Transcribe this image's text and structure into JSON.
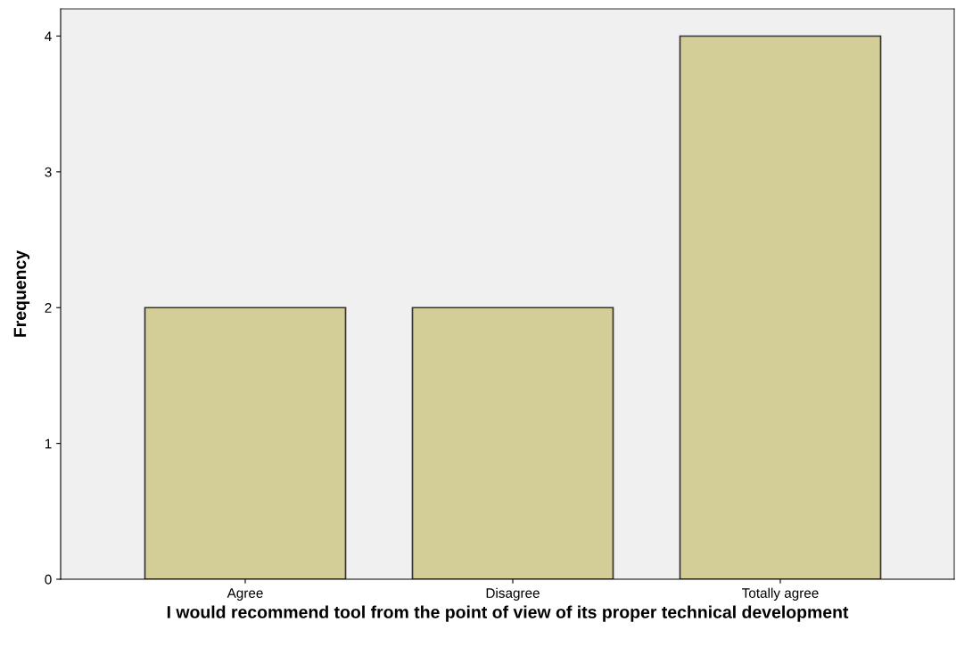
{
  "chart_data": {
    "type": "bar",
    "xlabel": "I would recommend tool from the point of view of its proper technical development",
    "ylabel": "Frequency",
    "categories": [
      "Agree",
      "Disagree",
      "Totally agree"
    ],
    "values": [
      2,
      2,
      4
    ],
    "color": "#d3ce97",
    "ylim": [
      0,
      4.2
    ],
    "yticks": [
      0,
      1,
      2,
      3,
      4
    ],
    "grid": false,
    "legend": false
  }
}
